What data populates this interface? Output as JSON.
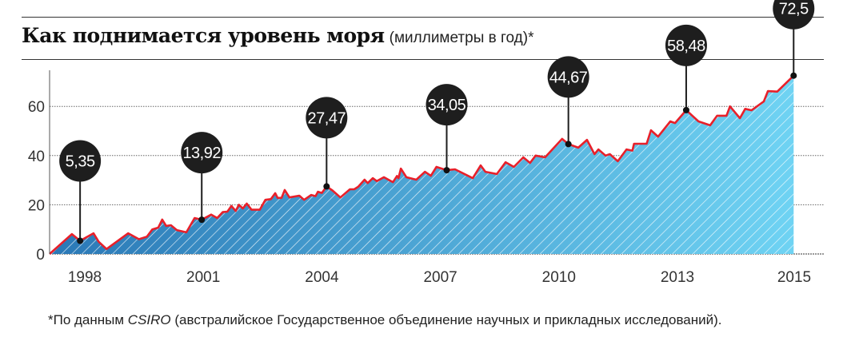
{
  "chart_data": {
    "type": "area",
    "title": "Как поднимается уровень моря",
    "subtitle": "(миллиметры в год)*",
    "xlabel": "",
    "ylabel": "",
    "ylim": [
      0,
      75
    ],
    "xlim": [
      1997.1,
      2015
    ],
    "yticks": [
      0,
      20,
      40,
      60
    ],
    "xticks": [
      {
        "label": "1998",
        "value": 1998
      },
      {
        "label": "2001",
        "value": 2001
      },
      {
        "label": "2004",
        "value": 2004
      },
      {
        "label": "2007",
        "value": 2007
      },
      {
        "label": "2010",
        "value": 2010
      },
      {
        "label": "2013",
        "value": 2013
      },
      {
        "label": "2015",
        "value": 2015
      }
    ],
    "grid": true,
    "colors": {
      "line": "#e8202a",
      "fill_start": "#2a78b6",
      "fill_end": "#6fd3f3",
      "bubble": "#1e1e1e"
    },
    "points": [
      [
        1997.1,
        0
      ],
      [
        1997.67,
        8.1
      ],
      [
        1997.88,
        5.35
      ],
      [
        1998.22,
        8.4
      ],
      [
        1998.35,
        5
      ],
      [
        1998.55,
        2
      ],
      [
        1999.1,
        8.4
      ],
      [
        1999.37,
        6
      ],
      [
        1999.57,
        7
      ],
      [
        1999.71,
        10
      ],
      [
        1999.86,
        10.7
      ],
      [
        1999.96,
        14
      ],
      [
        2000.06,
        11.4
      ],
      [
        2000.18,
        11.7
      ],
      [
        2000.33,
        9.7
      ],
      [
        2000.57,
        8.8
      ],
      [
        2000.78,
        14.6
      ],
      [
        2000.96,
        13.92
      ],
      [
        2001.2,
        16
      ],
      [
        2001.35,
        14.6
      ],
      [
        2001.49,
        17
      ],
      [
        2001.61,
        17.2
      ],
      [
        2001.71,
        19.5
      ],
      [
        2001.82,
        17.5
      ],
      [
        2001.9,
        20
      ],
      [
        2002.0,
        18.5
      ],
      [
        2002.1,
        20.5
      ],
      [
        2002.22,
        18
      ],
      [
        2002.43,
        18
      ],
      [
        2002.57,
        22
      ],
      [
        2002.71,
        22.3
      ],
      [
        2002.82,
        24.7
      ],
      [
        2002.88,
        22.8
      ],
      [
        2002.98,
        22.8
      ],
      [
        2003.06,
        26
      ],
      [
        2003.18,
        23
      ],
      [
        2003.43,
        23.7
      ],
      [
        2003.55,
        22
      ],
      [
        2003.73,
        24
      ],
      [
        2003.84,
        23.5
      ],
      [
        2003.9,
        25.3
      ],
      [
        2004.0,
        24.8
      ],
      [
        2004.12,
        27.47
      ],
      [
        2004.27,
        25.8
      ],
      [
        2004.47,
        23
      ],
      [
        2004.71,
        26.3
      ],
      [
        2004.82,
        26.3
      ],
      [
        2004.92,
        27.3
      ],
      [
        2005.08,
        30.2
      ],
      [
        2005.16,
        28.8
      ],
      [
        2005.29,
        30.8
      ],
      [
        2005.39,
        29.6
      ],
      [
        2005.57,
        31.2
      ],
      [
        2005.8,
        29.2
      ],
      [
        2005.9,
        31.7
      ],
      [
        2005.94,
        30.8
      ],
      [
        2006.0,
        34.7
      ],
      [
        2006.14,
        31.2
      ],
      [
        2006.39,
        30.2
      ],
      [
        2006.61,
        33.4
      ],
      [
        2006.76,
        31.8
      ],
      [
        2006.9,
        35.4
      ],
      [
        2007.16,
        34.05
      ],
      [
        2007.37,
        34.4
      ],
      [
        2007.82,
        30.8
      ],
      [
        2008.02,
        36
      ],
      [
        2008.14,
        33.4
      ],
      [
        2008.43,
        32.5
      ],
      [
        2008.65,
        37.3
      ],
      [
        2008.86,
        35.4
      ],
      [
        2009.1,
        39.3
      ],
      [
        2009.27,
        37
      ],
      [
        2009.41,
        40
      ],
      [
        2009.65,
        39.3
      ],
      [
        2010.08,
        46.8
      ],
      [
        2010.24,
        44.67
      ],
      [
        2010.49,
        43.2
      ],
      [
        2010.71,
        46.4
      ],
      [
        2010.9,
        40.6
      ],
      [
        2011.0,
        42.5
      ],
      [
        2011.18,
        40
      ],
      [
        2011.29,
        40.6
      ],
      [
        2011.49,
        37.7
      ],
      [
        2011.71,
        42.5
      ],
      [
        2011.86,
        42
      ],
      [
        2011.9,
        44.8
      ],
      [
        2012.22,
        44.8
      ],
      [
        2012.33,
        50.3
      ],
      [
        2012.51,
        47.7
      ],
      [
        2012.82,
        53.9
      ],
      [
        2012.94,
        53.2
      ],
      [
        2013.15,
        58.48
      ],
      [
        2013.36,
        53.9
      ],
      [
        2013.56,
        52.3
      ],
      [
        2013.68,
        56.2
      ],
      [
        2013.84,
        56.2
      ],
      [
        2013.9,
        60
      ],
      [
        2014.07,
        55.2
      ],
      [
        2014.16,
        59
      ],
      [
        2014.27,
        58.4
      ],
      [
        2014.48,
        62
      ],
      [
        2014.55,
        66.2
      ],
      [
        2014.71,
        66
      ],
      [
        2014.99,
        72.5
      ]
    ],
    "annotations": [
      {
        "x": 1997.88,
        "y": 5.35,
        "label": "5,35"
      },
      {
        "x": 2000.96,
        "y": 13.92,
        "label": "13,92"
      },
      {
        "x": 2004.12,
        "y": 27.47,
        "label": "27,47"
      },
      {
        "x": 2007.16,
        "y": 34.05,
        "label": "34,05"
      },
      {
        "x": 2010.24,
        "y": 44.67,
        "label": "44,67"
      },
      {
        "x": 2013.15,
        "y": 58.48,
        "label": "58,48"
      },
      {
        "x": 2014.99,
        "y": 72.5,
        "label": "72,5"
      }
    ]
  },
  "footnote": {
    "prefix": "*По данным ",
    "source": "CSIRO",
    "suffix": " (австралийское Государственное объединение научных и прикладных исследований)."
  }
}
